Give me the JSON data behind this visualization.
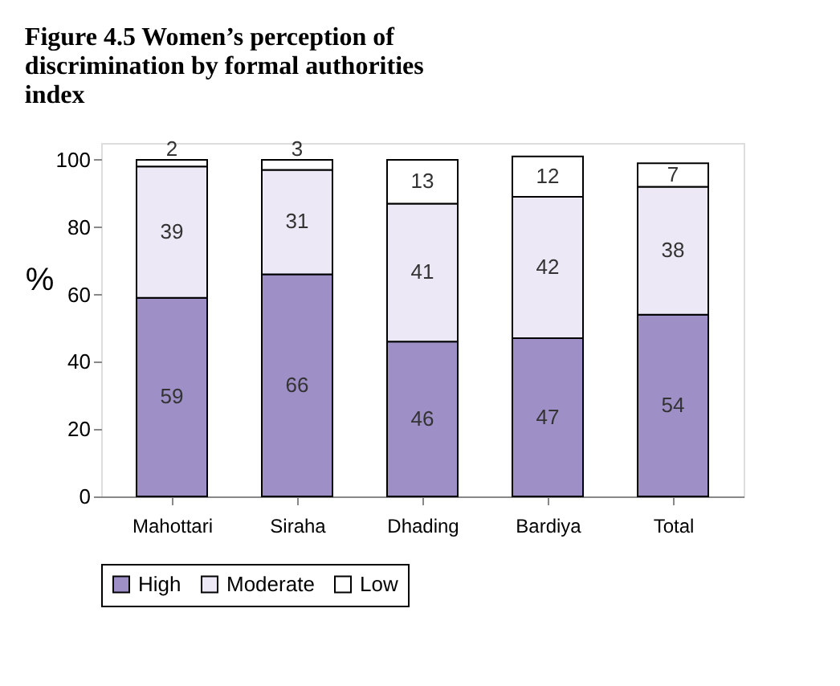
{
  "chart_data": {
    "type": "bar",
    "title": "Figure 4.5  Women’s perception of discrimination by formal authorities index",
    "ylabel": "%",
    "categories": [
      "Mahottari",
      "Siraha",
      "Dhading",
      "Bardiya",
      "Total"
    ],
    "stacked": true,
    "data_labels": true,
    "ylim": [
      0,
      105
    ],
    "yticks": [
      0,
      20,
      40,
      60,
      80,
      100
    ],
    "grid": false,
    "legend": "bottom",
    "series": [
      {
        "name": "High",
        "color": "#9e8fc6",
        "values": [
          59,
          66,
          46,
          47,
          54
        ]
      },
      {
        "name": "Moderate",
        "color": "#ece8f5",
        "values": [
          39,
          31,
          41,
          42,
          38
        ]
      },
      {
        "name": "Low",
        "color": "#ffffff",
        "values": [
          2,
          3,
          13,
          12,
          7
        ]
      }
    ]
  }
}
